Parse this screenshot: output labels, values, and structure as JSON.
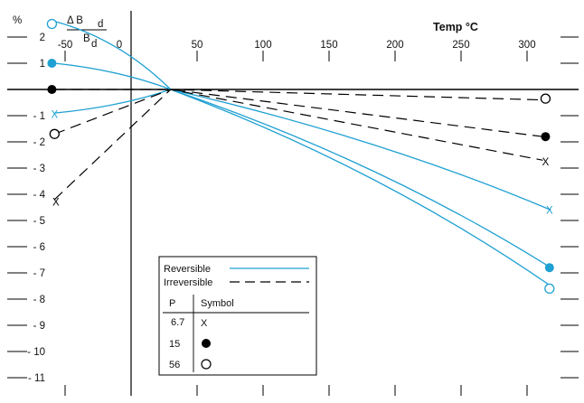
{
  "chart_data": {
    "type": "line",
    "title": "",
    "xlabel": "Temp °C",
    "ylabel": "%",
    "ylabel_formula": {
      "numerator": "Δ B",
      "numerator_sub": "d",
      "denominator": "B",
      "denominator_sub": "d"
    },
    "xlim": [
      -75,
      325
    ],
    "ylim": [
      -11.8,
      2.6
    ],
    "x_ticks": [
      -50,
      0,
      50,
      100,
      150,
      200,
      250,
      300
    ],
    "x_tick_labels": [
      "-50",
      "0",
      "50",
      "100",
      "150",
      "200",
      "250",
      "300"
    ],
    "y_ticks": [
      2,
      1,
      0,
      -1,
      -2,
      -3,
      -4,
      -5,
      -6,
      -7,
      -8,
      -9,
      -10,
      -11
    ],
    "y_tick_labels": [
      "2",
      "1",
      "",
      "- 1",
      "- 2",
      "- 3",
      "- 4",
      "- 5",
      "- 6",
      "- 7",
      "- 8",
      "- 9",
      "- 10",
      "- 11"
    ],
    "grid": false,
    "colors": {
      "reversible": "#1ea0d2",
      "irreversible": "#000000",
      "axis": "#000000"
    },
    "series": [
      {
        "name": "",
        "kind": "reversible",
        "P": "56",
        "x": [
          -58,
          30,
          318
        ],
        "y": [
          2.6,
          0.0,
          -7.5
        ]
      },
      {
        "name": "",
        "kind": "reversible",
        "P": "15",
        "x": [
          -58,
          30,
          318
        ],
        "y": [
          1.0,
          0.0,
          -6.8
        ]
      },
      {
        "name": "",
        "kind": "reversible",
        "P": "6.7",
        "x": [
          -58,
          30,
          318
        ],
        "y": [
          -0.9,
          0.0,
          -4.6
        ]
      },
      {
        "name": "",
        "kind": "irreversible",
        "P": "15",
        "x": [
          -58,
          30,
          312
        ],
        "y": [
          0.0,
          0.0,
          -1.8
        ]
      },
      {
        "name": "",
        "kind": "irreversible",
        "P": "56",
        "x": [
          -58,
          30,
          312
        ],
        "y": [
          -1.7,
          0.0,
          -0.4
        ]
      },
      {
        "name": "",
        "kind": "irreversible",
        "P": "6.7",
        "x": [
          -58,
          30,
          312
        ],
        "y": [
          -4.2,
          0.0,
          -2.7
        ]
      }
    ],
    "points": [
      {
        "x": -60,
        "y": 2.5,
        "marker": "open-blue"
      },
      {
        "x": -60,
        "y": 1.0,
        "marker": "filled-blue"
      },
      {
        "x": -58,
        "y": -0.95,
        "marker": "x-blue"
      },
      {
        "x": -60,
        "y": 0.0,
        "marker": "filled-black"
      },
      {
        "x": -58,
        "y": -1.7,
        "marker": "open-black"
      },
      {
        "x": -57,
        "y": -4.3,
        "marker": "x-black"
      },
      {
        "x": 314,
        "y": -0.35,
        "marker": "open-black"
      },
      {
        "x": 314,
        "y": -1.8,
        "marker": "filled-black"
      },
      {
        "x": 314,
        "y": -2.75,
        "marker": "x-black"
      },
      {
        "x": 317,
        "y": -4.6,
        "marker": "x-blue"
      },
      {
        "x": 317,
        "y": -6.8,
        "marker": "filled-blue"
      },
      {
        "x": 317,
        "y": -7.6,
        "marker": "open-blue"
      }
    ],
    "legend": {
      "placement": "bottom-left",
      "line_entries": [
        {
          "label": "Reversible",
          "style": "solid"
        },
        {
          "label": "Irreversible",
          "style": "dashed"
        }
      ],
      "table_headers": [
        "P",
        "Symbol"
      ],
      "table_rows": [
        {
          "P": "6.7",
          "symbol": "x",
          "symbol_text": "X"
        },
        {
          "P": "15",
          "symbol": "filled"
        },
        {
          "P": "56",
          "symbol": "open"
        }
      ]
    }
  }
}
